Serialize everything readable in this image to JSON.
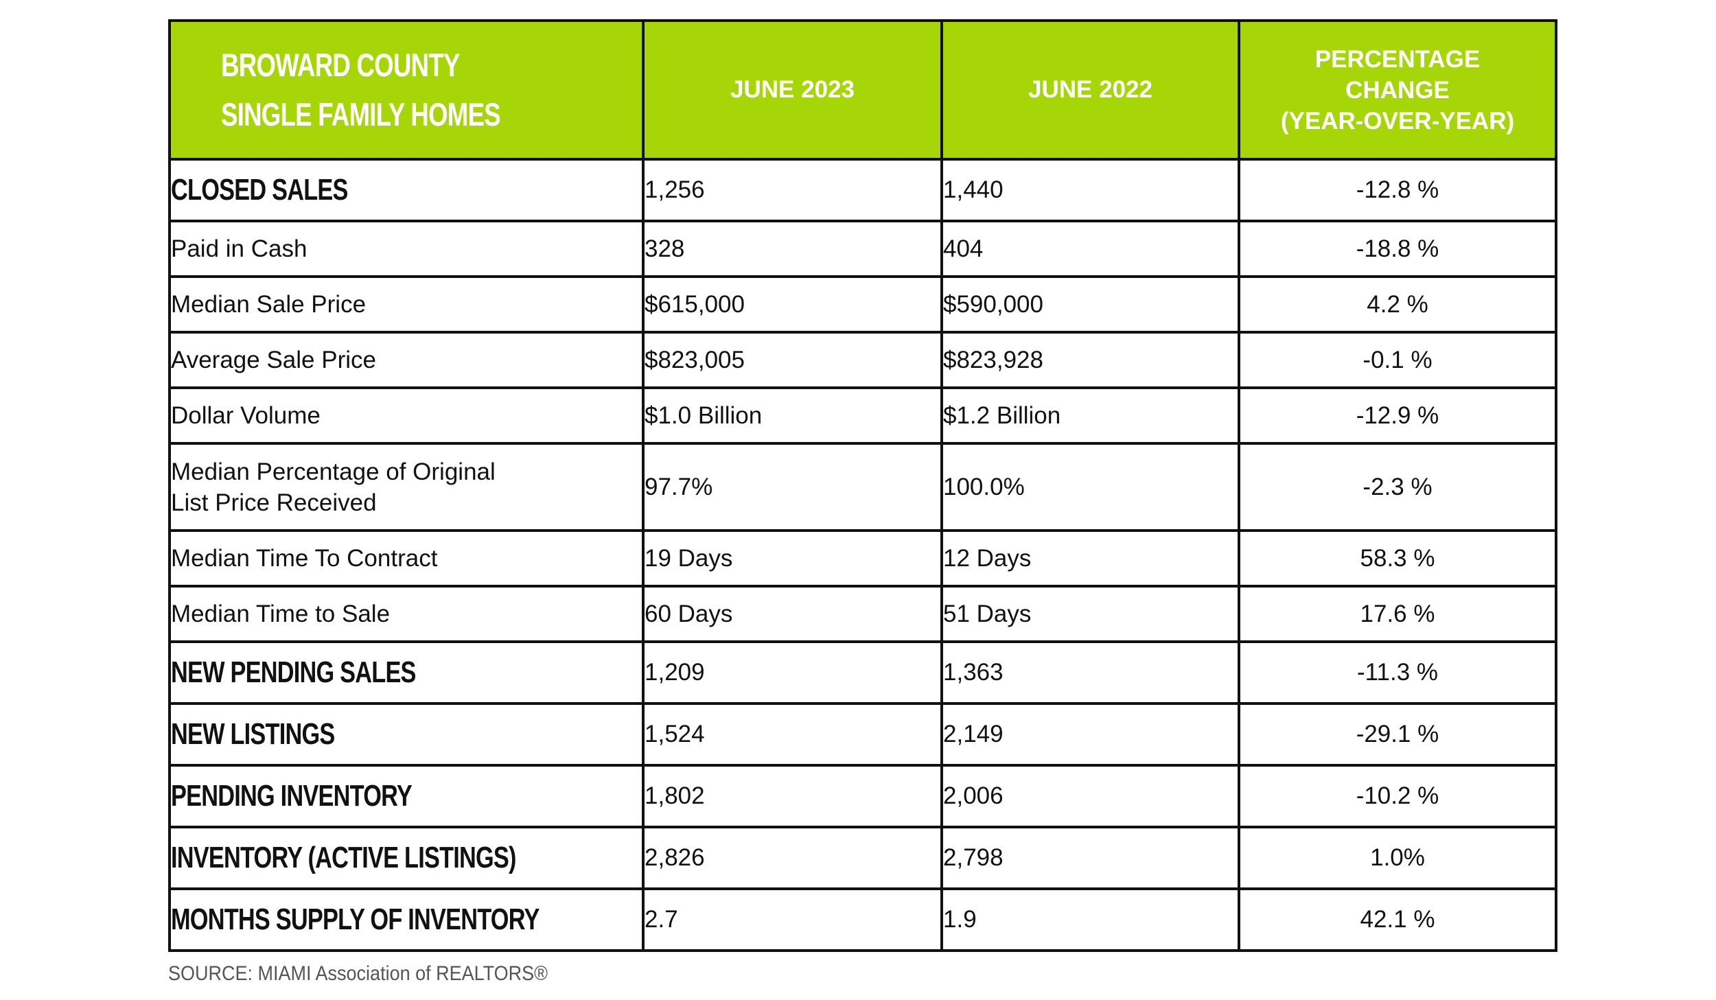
{
  "header": {
    "county_line1": "BROWARD COUNTY",
    "county_line2": "SINGLE FAMILY HOMES",
    "col_current": "JUNE 2023",
    "col_previous": "JUNE 2022",
    "pct_line1": "PERCENTAGE",
    "pct_line2": "CHANGE",
    "pct_line3": "(YEAR-OVER-YEAR)"
  },
  "rows": [
    {
      "label": "CLOSED SALES",
      "current": "1,256",
      "previous": "1,440",
      "change": "-12.8 %"
    },
    {
      "label": "Paid in Cash",
      "current": "328",
      "previous": "404",
      "change": "-18.8 %"
    },
    {
      "label": "Median Sale Price",
      "current": "$615,000",
      "previous": "$590,000",
      "change": "4.2 %"
    },
    {
      "label": "Average Sale Price",
      "current": "$823,005",
      "previous": "$823,928",
      "change": "-0.1 %"
    },
    {
      "label": "Dollar Volume",
      "current": "$1.0 Billion",
      "previous": "$1.2 Billion",
      "change": "-12.9 %"
    },
    {
      "label_line1": "Median Percentage of Original",
      "label_line2": "List Price Received",
      "current": "97.7%",
      "previous": "100.0%",
      "change": "-2.3 %"
    },
    {
      "label": "Median Time To Contract",
      "current": "19 Days",
      "previous": "12 Days",
      "change": "58.3 %"
    },
    {
      "label": "Median Time to Sale",
      "current": "60 Days",
      "previous": "51 Days",
      "change": "17.6 %"
    },
    {
      "label": "NEW PENDING SALES",
      "current": "1,209",
      "previous": "1,363",
      "change": "-11.3 %"
    },
    {
      "label": "NEW LISTINGS",
      "current": "1,524",
      "previous": "2,149",
      "change": "-29.1 %"
    },
    {
      "label": "PENDING INVENTORY",
      "current": "1,802",
      "previous": "2,006",
      "change": "-10.2 %"
    },
    {
      "label": "INVENTORY (ACTIVE LISTINGS)",
      "current": "2,826",
      "previous": "2,798",
      "change": "1.0%"
    },
    {
      "label": "MONTHS SUPPLY OF INVENTORY",
      "current": "2.7",
      "previous": "1.9",
      "change": "42.1 %"
    }
  ],
  "footer": {
    "source": "SOURCE: MIAMI Association of REALTORS®"
  },
  "colors": {
    "header_bg": "#a6d608",
    "header_text": "#ffffff",
    "border": "#111111"
  }
}
